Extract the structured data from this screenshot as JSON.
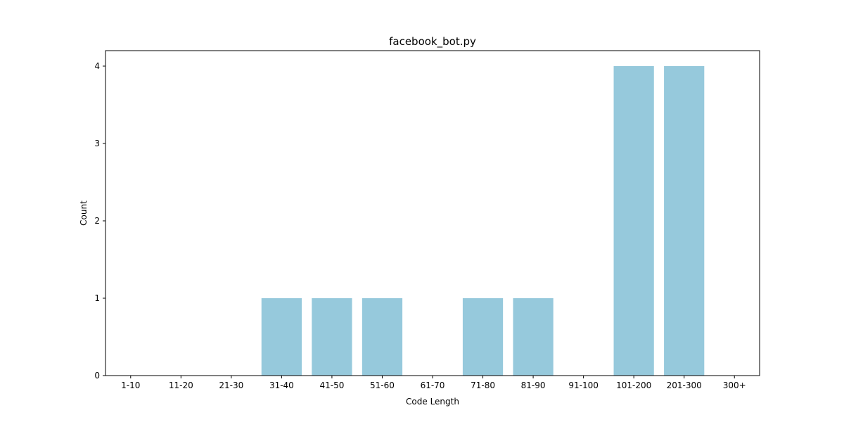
{
  "chart_data": {
    "type": "bar",
    "title": "facebook_bot.py",
    "xlabel": "Code Length",
    "ylabel": "Count",
    "categories": [
      "1-10",
      "11-20",
      "21-30",
      "31-40",
      "41-50",
      "51-60",
      "61-70",
      "71-80",
      "81-90",
      "91-100",
      "101-200",
      "201-300",
      "300+"
    ],
    "values": [
      0,
      0,
      0,
      1,
      1,
      1,
      0,
      1,
      1,
      0,
      4,
      4,
      0
    ],
    "ylim": [
      0,
      4.2
    ],
    "yticks": [
      0,
      1,
      2,
      3,
      4
    ],
    "grid": false,
    "bar_color": "#96c9dc"
  }
}
